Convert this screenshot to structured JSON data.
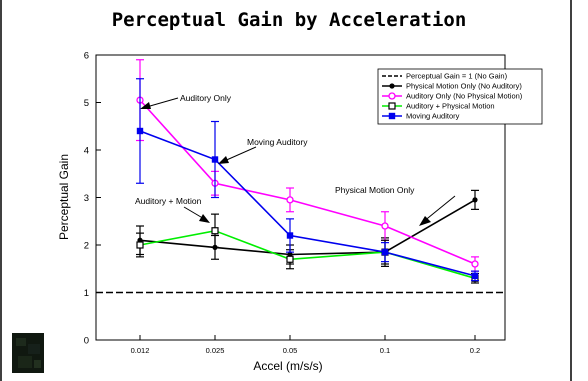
{
  "chart_data": {
    "type": "line",
    "title": "Perceptual Gain by Acceleration",
    "xlabel": "Accel (m/s/s)",
    "ylabel": "Perceptual Gain",
    "categories": [
      "0.012",
      "0.025",
      "0.05",
      "0.1",
      "0.2"
    ],
    "ylim": [
      0,
      6
    ],
    "yticks": [
      "0",
      "1",
      "2",
      "3",
      "4",
      "5",
      "6"
    ],
    "legend_position": "top-right",
    "grid": false,
    "series": [
      {
        "name": "Perceptual Gain = 1 (No Gain)",
        "color": "#000000",
        "style": "dashed",
        "marker": "none",
        "values": [
          1,
          1,
          1,
          1,
          1
        ],
        "err": [
          0,
          0,
          0,
          0,
          0
        ]
      },
      {
        "name": "Physical Motion Only (No Auditory)",
        "color": "#000000",
        "style": "solid",
        "marker": "dot",
        "values": [
          2.1,
          1.95,
          1.8,
          1.85,
          2.95
        ],
        "err": [
          0.3,
          0.25,
          0.2,
          0.3,
          0.2
        ]
      },
      {
        "name": "Auditory Only (No Physical Motion)",
        "color": "#ff00ff",
        "style": "solid",
        "marker": "open-circle",
        "values": [
          5.05,
          3.3,
          2.95,
          2.4,
          1.6
        ],
        "err": [
          0.85,
          0.25,
          0.25,
          0.3,
          0.15
        ]
      },
      {
        "name": "Auditory + Physical Motion",
        "color": "#00ee00",
        "style": "solid",
        "marker": "open-square",
        "values": [
          2.0,
          2.3,
          1.7,
          1.85,
          1.3
        ],
        "err": [
          0.25,
          0.35,
          0.2,
          0.25,
          0.1
        ]
      },
      {
        "name": "Moving Auditory",
        "color": "#0000ee",
        "style": "solid",
        "marker": "filled-square",
        "values": [
          4.4,
          3.8,
          2.2,
          1.85,
          1.35
        ],
        "err": [
          1.1,
          0.8,
          0.35,
          0.2,
          0.1
        ]
      }
    ],
    "annotations": [
      {
        "text": "Auditory Only",
        "x": "0.012",
        "y": 5.05
      },
      {
        "text": "Moving Auditory",
        "x": "0.025",
        "y": 3.8
      },
      {
        "text": "Physical Motion Only",
        "x": "0.1",
        "y": 1.85
      },
      {
        "text": "Auditory + Motion",
        "x": "0.025",
        "y": 2.3
      }
    ]
  }
}
